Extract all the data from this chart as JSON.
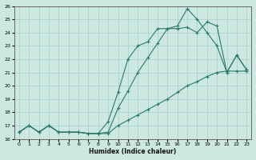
{
  "xlabel": "Humidex (Indice chaleur)",
  "bg_color": "#cce8e0",
  "grid_color": "#aad4cc",
  "line_color": "#2d7a6a",
  "xlim": [
    -0.5,
    23.5
  ],
  "ylim": [
    16,
    26
  ],
  "xticks": [
    0,
    1,
    2,
    3,
    4,
    5,
    6,
    7,
    8,
    9,
    10,
    11,
    12,
    13,
    14,
    15,
    16,
    17,
    18,
    19,
    20,
    21,
    22,
    23
  ],
  "yticks": [
    16,
    17,
    18,
    19,
    20,
    21,
    22,
    23,
    24,
    25,
    26
  ],
  "curve1_x": [
    0,
    1,
    2,
    3,
    4,
    5,
    6,
    7,
    8,
    9,
    10,
    11,
    12,
    13,
    14,
    15,
    16,
    17,
    18,
    19,
    20,
    21,
    22,
    23
  ],
  "curve1_y": [
    16.5,
    17.0,
    16.5,
    17.0,
    16.5,
    16.5,
    16.5,
    16.4,
    16.4,
    16.4,
    17.0,
    17.4,
    17.8,
    18.2,
    18.6,
    19.0,
    19.5,
    20.0,
    20.3,
    20.7,
    21.0,
    21.1,
    21.1,
    21.1
  ],
  "curve2_x": [
    0,
    1,
    2,
    3,
    4,
    5,
    6,
    7,
    8,
    9,
    10,
    11,
    12,
    13,
    14,
    15,
    16,
    17,
    18,
    19,
    20,
    21,
    22,
    23
  ],
  "curve2_y": [
    16.5,
    17.0,
    16.5,
    17.0,
    16.5,
    16.5,
    16.5,
    16.4,
    16.4,
    16.5,
    18.3,
    19.6,
    21.0,
    22.1,
    23.2,
    24.3,
    24.3,
    24.4,
    24.0,
    24.8,
    24.5,
    21.0,
    22.3,
    21.2
  ],
  "curve3_x": [
    0,
    1,
    2,
    3,
    4,
    5,
    6,
    7,
    8,
    9,
    10,
    11,
    12,
    13,
    14,
    15,
    16,
    17,
    18,
    19,
    20,
    21,
    22,
    23
  ],
  "curve3_y": [
    16.5,
    17.0,
    16.5,
    17.0,
    16.5,
    16.5,
    16.5,
    16.4,
    16.4,
    17.3,
    19.5,
    22.0,
    23.0,
    23.3,
    24.3,
    24.3,
    24.5,
    25.8,
    25.0,
    24.0,
    23.0,
    21.0,
    22.3,
    21.2
  ]
}
